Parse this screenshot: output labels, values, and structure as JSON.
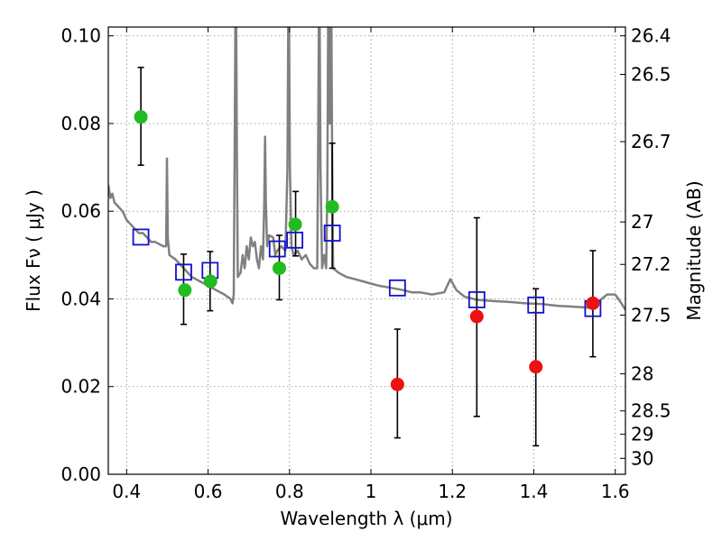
{
  "chart_data": {
    "type": "scatter",
    "xlabel": "Wavelength  λ (μm)",
    "ylabel": "Flux  Fν  ( μJy )",
    "ylabel_right": "Magnitude (AB)",
    "xlim": [
      0.355,
      1.625
    ],
    "ylim": [
      0.0,
      0.102
    ],
    "x_ticks": [
      {
        "value": 0.4,
        "label": "0.4"
      },
      {
        "value": 0.6,
        "label": "0.6"
      },
      {
        "value": 0.8,
        "label": "0.8"
      },
      {
        "value": 1.0,
        "label": "1"
      },
      {
        "value": 1.2,
        "label": "1.2"
      },
      {
        "value": 1.4,
        "label": "1.4"
      },
      {
        "value": 1.6,
        "label": "1.6"
      }
    ],
    "y_ticks": [
      {
        "value": 0.0,
        "label": "0.00"
      },
      {
        "value": 0.02,
        "label": "0.02"
      },
      {
        "value": 0.04,
        "label": "0.04"
      },
      {
        "value": 0.06,
        "label": "0.06"
      },
      {
        "value": 0.08,
        "label": "0.08"
      },
      {
        "value": 0.1,
        "label": "0.10"
      }
    ],
    "right_ticks": [
      {
        "mag": 26.4,
        "label": "26.4"
      },
      {
        "mag": 26.5,
        "label": "26.5"
      },
      {
        "mag": 26.7,
        "label": "26.7"
      },
      {
        "mag": 27,
        "label": "27"
      },
      {
        "mag": 27.2,
        "label": "27.2"
      },
      {
        "mag": 27.5,
        "label": "27.5"
      },
      {
        "mag": 28,
        "label": "28"
      },
      {
        "mag": 28.5,
        "label": "28.5"
      },
      {
        "mag": 29,
        "label": "29"
      },
      {
        "mag": 30,
        "label": "30"
      }
    ],
    "grid": true,
    "colors": {
      "green": "#22bb22",
      "red": "#ee1111",
      "model_box": "#1111cc",
      "spectrum": "#808080",
      "errorbar": "#000000",
      "grid": "#888888"
    },
    "green_points": [
      {
        "x": 0.435,
        "y": 0.0815,
        "err": 0.0112
      },
      {
        "x": 0.543,
        "y": 0.042,
        "err": null
      },
      {
        "x": 0.606,
        "y": 0.044,
        "err": null
      },
      {
        "x": 0.775,
        "y": 0.047,
        "err": null
      },
      {
        "x": 0.814,
        "y": 0.057,
        "err": null
      },
      {
        "x": 0.905,
        "y": 0.061,
        "err": null
      }
    ],
    "red_points": [
      {
        "x": 1.065,
        "y": 0.0205,
        "err": null
      },
      {
        "x": 1.26,
        "y": 0.036,
        "err": null
      },
      {
        "x": 1.405,
        "y": 0.0245,
        "err": null
      },
      {
        "x": 1.545,
        "y": 0.039,
        "err": null
      }
    ],
    "errorbars": [
      {
        "x": 0.435,
        "ylo": 0.0705,
        "yhi": 0.0928
      },
      {
        "x": 0.54,
        "ylo": 0.0342,
        "yhi": 0.0502
      },
      {
        "x": 0.605,
        "ylo": 0.0373,
        "yhi": 0.0508
      },
      {
        "x": 0.775,
        "ylo": 0.0398,
        "yhi": 0.0545
      },
      {
        "x": 0.815,
        "ylo": 0.0498,
        "yhi": 0.0645
      },
      {
        "x": 0.905,
        "ylo": 0.047,
        "yhi": 0.0755
      },
      {
        "x": 1.065,
        "ylo": 0.0083,
        "yhi": 0.0331
      },
      {
        "x": 1.26,
        "ylo": 0.0132,
        "yhi": 0.0585
      },
      {
        "x": 1.405,
        "ylo": 0.0065,
        "yhi": 0.0423
      },
      {
        "x": 1.545,
        "ylo": 0.0268,
        "yhi": 0.051
      }
    ],
    "model_boxes": [
      {
        "x": 0.435,
        "y": 0.0541
      },
      {
        "x": 0.54,
        "y": 0.0461
      },
      {
        "x": 0.605,
        "y": 0.0465
      },
      {
        "x": 0.77,
        "y": 0.0514
      },
      {
        "x": 0.813,
        "y": 0.0534
      },
      {
        "x": 0.905,
        "y": 0.055
      },
      {
        "x": 1.065,
        "y": 0.0425
      },
      {
        "x": 1.26,
        "y": 0.0398
      },
      {
        "x": 1.405,
        "y": 0.0386
      },
      {
        "x": 1.545,
        "y": 0.0378
      }
    ],
    "spectrum": [
      [
        0.355,
        0.066
      ],
      [
        0.36,
        0.063
      ],
      [
        0.365,
        0.064
      ],
      [
        0.37,
        0.062
      ],
      [
        0.38,
        0.061
      ],
      [
        0.39,
        0.06
      ],
      [
        0.4,
        0.058
      ],
      [
        0.41,
        0.057
      ],
      [
        0.42,
        0.056
      ],
      [
        0.43,
        0.055
      ],
      [
        0.44,
        0.055
      ],
      [
        0.45,
        0.054
      ],
      [
        0.46,
        0.053
      ],
      [
        0.47,
        0.053
      ],
      [
        0.48,
        0.0525
      ],
      [
        0.49,
        0.052
      ],
      [
        0.497,
        0.052
      ],
      [
        0.499,
        0.072
      ],
      [
        0.501,
        0.054
      ],
      [
        0.505,
        0.05
      ],
      [
        0.52,
        0.049
      ],
      [
        0.54,
        0.047
      ],
      [
        0.56,
        0.045
      ],
      [
        0.58,
        0.044
      ],
      [
        0.6,
        0.043
      ],
      [
        0.62,
        0.042
      ],
      [
        0.64,
        0.041
      ],
      [
        0.655,
        0.04
      ],
      [
        0.66,
        0.039
      ],
      [
        0.663,
        0.041
      ],
      [
        0.665,
        0.07
      ],
      [
        0.667,
        0.103
      ],
      [
        0.669,
        0.103
      ],
      [
        0.671,
        0.07
      ],
      [
        0.673,
        0.045
      ],
      [
        0.68,
        0.046
      ],
      [
        0.685,
        0.05
      ],
      [
        0.69,
        0.047
      ],
      [
        0.695,
        0.052
      ],
      [
        0.7,
        0.049
      ],
      [
        0.705,
        0.054
      ],
      [
        0.71,
        0.052
      ],
      [
        0.715,
        0.053
      ],
      [
        0.72,
        0.049
      ],
      [
        0.725,
        0.047
      ],
      [
        0.73,
        0.052
      ],
      [
        0.735,
        0.049
      ],
      [
        0.738,
        0.062
      ],
      [
        0.74,
        0.077
      ],
      [
        0.742,
        0.062
      ],
      [
        0.745,
        0.052
      ],
      [
        0.75,
        0.0545
      ],
      [
        0.76,
        0.054
      ],
      [
        0.765,
        0.05
      ],
      [
        0.77,
        0.051
      ],
      [
        0.78,
        0.052
      ],
      [
        0.79,
        0.051
      ],
      [
        0.795,
        0.07
      ],
      [
        0.797,
        0.103
      ],
      [
        0.799,
        0.103
      ],
      [
        0.801,
        0.07
      ],
      [
        0.805,
        0.052
      ],
      [
        0.81,
        0.05
      ],
      [
        0.82,
        0.051
      ],
      [
        0.83,
        0.049
      ],
      [
        0.84,
        0.05
      ],
      [
        0.85,
        0.048
      ],
      [
        0.86,
        0.047
      ],
      [
        0.868,
        0.047
      ],
      [
        0.87,
        0.07
      ],
      [
        0.872,
        0.103
      ],
      [
        0.874,
        0.103
      ],
      [
        0.876,
        0.07
      ],
      [
        0.88,
        0.047
      ],
      [
        0.885,
        0.05
      ],
      [
        0.89,
        0.047
      ],
      [
        0.893,
        0.065
      ],
      [
        0.895,
        0.103
      ],
      [
        0.897,
        0.08
      ],
      [
        0.899,
        0.103
      ],
      [
        0.901,
        0.08
      ],
      [
        0.903,
        0.103
      ],
      [
        0.905,
        0.07
      ],
      [
        0.907,
        0.047
      ],
      [
        0.92,
        0.046
      ],
      [
        0.94,
        0.045
      ],
      [
        0.96,
        0.0445
      ],
      [
        0.98,
        0.044
      ],
      [
        1.0,
        0.0435
      ],
      [
        1.02,
        0.043
      ],
      [
        1.05,
        0.0425
      ],
      [
        1.08,
        0.042
      ],
      [
        1.1,
        0.0415
      ],
      [
        1.12,
        0.0415
      ],
      [
        1.15,
        0.041
      ],
      [
        1.18,
        0.0415
      ],
      [
        1.195,
        0.0445
      ],
      [
        1.21,
        0.042
      ],
      [
        1.23,
        0.0405
      ],
      [
        1.26,
        0.0398
      ],
      [
        1.3,
        0.0395
      ],
      [
        1.34,
        0.0393
      ],
      [
        1.38,
        0.039
      ],
      [
        1.42,
        0.0388
      ],
      [
        1.46,
        0.0384
      ],
      [
        1.5,
        0.0382
      ],
      [
        1.54,
        0.038
      ],
      [
        1.56,
        0.0395
      ],
      [
        1.58,
        0.041
      ],
      [
        1.6,
        0.041
      ],
      [
        1.615,
        0.039
      ],
      [
        1.625,
        0.0375
      ]
    ]
  }
}
